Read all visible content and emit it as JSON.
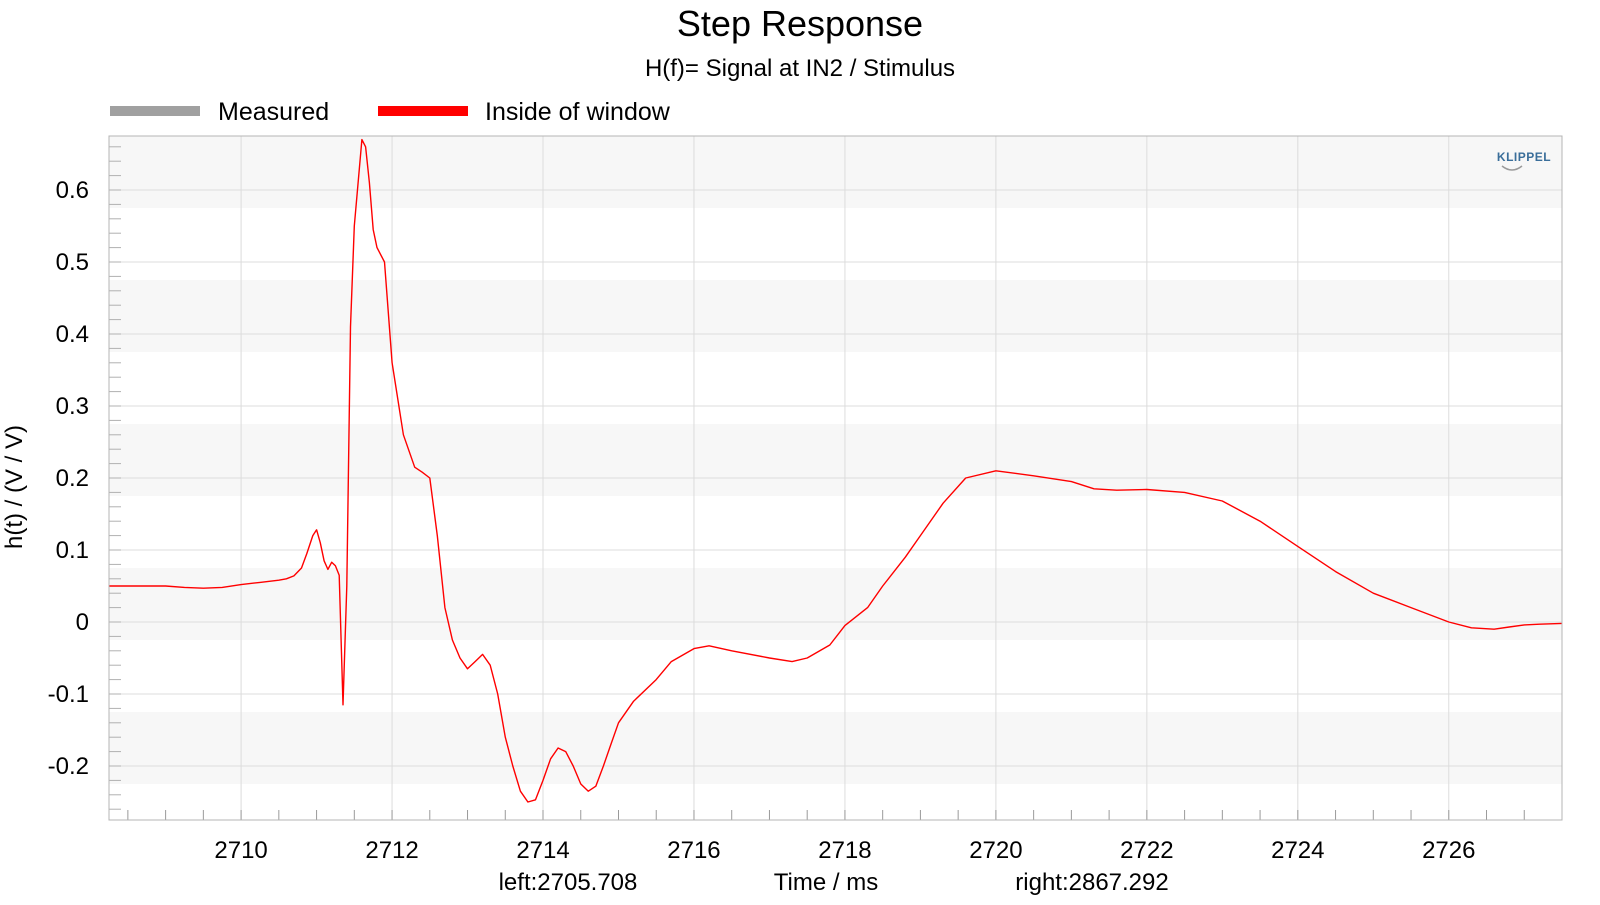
{
  "chart_data": {
    "type": "line",
    "title": "Step Response",
    "subtitle": "H(f)= Signal at IN2 / Stimulus",
    "xlabel": "Time / ms",
    "ylabel": "h(t) / (V / V)",
    "xlim": [
      2708.25,
      2727.5
    ],
    "ylim": [
      -0.275,
      0.675
    ],
    "x_ticks": [
      2710,
      2712,
      2714,
      2716,
      2718,
      2720,
      2722,
      2724,
      2726
    ],
    "y_ticks": [
      -0.2,
      -0.1,
      0,
      0.1,
      0.2,
      0.3,
      0.4,
      0.5,
      0.6
    ],
    "x_tick_labels": [
      "2710",
      "2712",
      "2714",
      "2716",
      "2718",
      "2720",
      "2722",
      "2724",
      "2726"
    ],
    "y_tick_labels": [
      "-0.2",
      "-0.1",
      "0",
      "0.1",
      "0.2",
      "0.3",
      "0.4",
      "0.5",
      "0.6"
    ],
    "grid": true,
    "legend_position": "top-left",
    "legend": [
      {
        "name": "Measured",
        "color": "#a0a0a0"
      },
      {
        "name": "Inside of window",
        "color": "#ff0000"
      }
    ],
    "window_left_label": "left:2705.708",
    "window_right_label": "right:2867.292",
    "logo": "KLIPPEL",
    "colors": {
      "window_line": "#ff0000",
      "measured_line": "#a0a0a0",
      "band_shade": "#f7f7f7",
      "grid": "#dcdcdc",
      "logo": "#3a6e9a"
    },
    "series": [
      {
        "name": "Inside of window",
        "color": "#ff0000",
        "x": [
          2708.25,
          2708.5,
          2709.0,
          2709.25,
          2709.5,
          2709.75,
          2710.0,
          2710.25,
          2710.5,
          2710.6,
          2710.7,
          2710.8,
          2710.87,
          2710.95,
          2711.0,
          2711.05,
          2711.1,
          2711.15,
          2711.2,
          2711.25,
          2711.3,
          2711.35,
          2711.4,
          2711.45,
          2711.5,
          2711.6,
          2711.65,
          2711.7,
          2711.75,
          2711.8,
          2711.9,
          2712.0,
          2712.15,
          2712.3,
          2712.4,
          2712.5,
          2712.6,
          2712.7,
          2712.8,
          2712.9,
          2713.0,
          2713.1,
          2713.2,
          2713.3,
          2713.4,
          2713.5,
          2713.6,
          2713.7,
          2713.8,
          2713.9,
          2714.0,
          2714.1,
          2714.2,
          2714.3,
          2714.4,
          2714.5,
          2714.6,
          2714.7,
          2714.8,
          2714.9,
          2715.0,
          2715.2,
          2715.5,
          2715.7,
          2716.0,
          2716.2,
          2716.5,
          2717.0,
          2717.3,
          2717.5,
          2717.8,
          2718.0,
          2718.3,
          2718.5,
          2718.8,
          2719.0,
          2719.3,
          2719.6,
          2720.0,
          2720.5,
          2721.0,
          2721.3,
          2721.6,
          2722.0,
          2722.5,
          2723.0,
          2723.5,
          2724.0,
          2724.5,
          2725.0,
          2725.5,
          2726.0,
          2726.3,
          2726.6,
          2726.8,
          2727.0,
          2727.2,
          2727.5
        ],
        "y": [
          0.05,
          0.05,
          0.05,
          0.048,
          0.047,
          0.048,
          0.052,
          0.055,
          0.058,
          0.06,
          0.064,
          0.075,
          0.095,
          0.12,
          0.128,
          0.11,
          0.085,
          0.073,
          0.083,
          0.078,
          0.065,
          -0.115,
          0.05,
          0.41,
          0.55,
          0.67,
          0.66,
          0.61,
          0.545,
          0.52,
          0.5,
          0.36,
          0.26,
          0.215,
          0.208,
          0.2,
          0.12,
          0.02,
          -0.025,
          -0.05,
          -0.065,
          -0.055,
          -0.045,
          -0.06,
          -0.1,
          -0.16,
          -0.2,
          -0.235,
          -0.25,
          -0.247,
          -0.22,
          -0.19,
          -0.175,
          -0.18,
          -0.2,
          -0.225,
          -0.235,
          -0.228,
          -0.2,
          -0.17,
          -0.14,
          -0.11,
          -0.08,
          -0.055,
          -0.037,
          -0.033,
          -0.04,
          -0.05,
          -0.055,
          -0.05,
          -0.032,
          -0.005,
          0.02,
          0.05,
          0.09,
          0.12,
          0.165,
          0.2,
          0.21,
          0.203,
          0.195,
          0.185,
          0.183,
          0.184,
          0.18,
          0.168,
          0.14,
          0.105,
          0.07,
          0.04,
          0.02,
          0.0,
          -0.008,
          -0.01,
          -0.007,
          -0.004,
          -0.003,
          -0.002
        ]
      }
    ]
  }
}
